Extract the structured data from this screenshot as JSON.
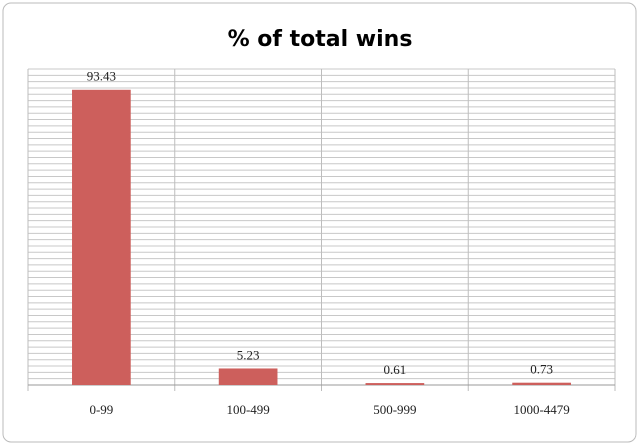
{
  "chart_data": {
    "type": "bar",
    "title": "% of total wins",
    "categories": [
      "0-99",
      "100-499",
      "500-999",
      "1000-4479"
    ],
    "values": [
      93.43,
      5.23,
      0.61,
      0.73
    ],
    "color": "#cd5f5c",
    "ylim": [
      0,
      100
    ],
    "yticks": [
      0,
      2,
      4,
      6,
      8,
      10,
      12,
      14,
      16,
      18,
      20,
      22,
      24,
      26,
      28,
      30,
      32,
      34,
      36,
      38,
      40,
      42,
      44,
      46,
      48,
      50,
      52,
      54,
      56,
      58,
      60,
      62,
      64,
      66,
      68,
      70,
      72,
      74,
      76,
      78,
      80,
      82,
      84,
      86,
      88,
      90,
      92,
      94,
      96,
      98,
      100
    ],
    "grid": true
  }
}
